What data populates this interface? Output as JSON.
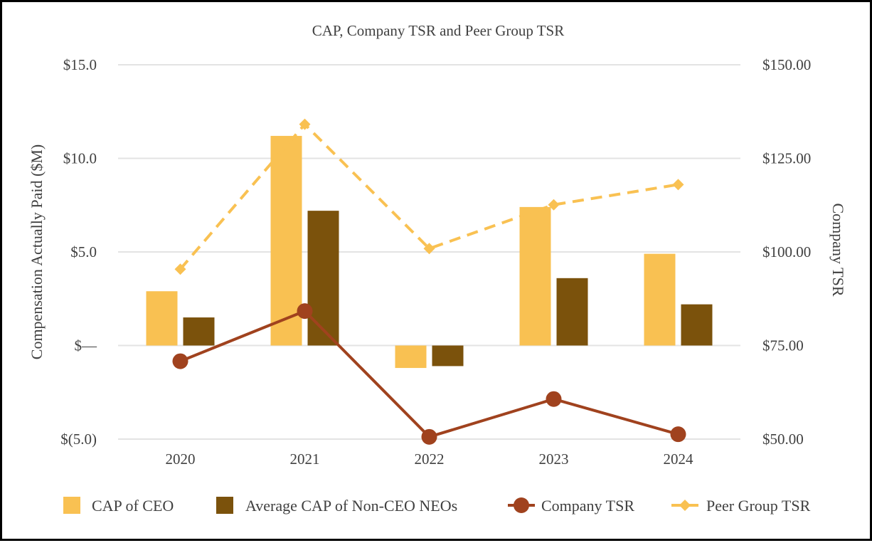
{
  "chart_data": {
    "type": "bar",
    "title": "CAP, Company TSR and Peer Group TSR",
    "categories": [
      "2020",
      "2021",
      "2022",
      "2023",
      "2024"
    ],
    "ylabel": "Compensation Actually Paid ($M)",
    "y2label": "Company TSR",
    "ylim": [
      -5,
      15
    ],
    "y2lim": [
      50,
      150
    ],
    "y_ticks": [
      {
        "value": 15,
        "label": "$15.0"
      },
      {
        "value": 10,
        "label": "$10.0"
      },
      {
        "value": 5,
        "label": "$5.0"
      },
      {
        "value": 0,
        "label": "$—"
      },
      {
        "value": -5,
        "label": "$(5.0)"
      }
    ],
    "y2_ticks": [
      {
        "value": 150,
        "label": "$150.00"
      },
      {
        "value": 125,
        "label": "$125.00"
      },
      {
        "value": 100,
        "label": "$100.00"
      },
      {
        "value": 75,
        "label": "$75.00"
      },
      {
        "value": 50,
        "label": "$50.00"
      }
    ],
    "grid": true,
    "legend_position": "bottom",
    "series": [
      {
        "name": "CAP of CEO",
        "type": "bar",
        "axis": "left",
        "color": "#F9C152",
        "values": [
          2.9,
          11.2,
          -1.2,
          7.4,
          4.9
        ]
      },
      {
        "name": "Average CAP of Non-CEO NEOs",
        "type": "bar",
        "axis": "left",
        "color": "#7B520C",
        "values": [
          1.5,
          7.2,
          -1.1,
          3.6,
          2.2
        ]
      },
      {
        "name": "Company TSR",
        "type": "line",
        "axis": "right",
        "color": "#A0421E",
        "marker": "circle",
        "values": [
          70.8,
          84.2,
          50.6,
          60.7,
          51.3
        ]
      },
      {
        "name": "Peer Group TSR",
        "type": "line",
        "axis": "right",
        "color": "#F9C152",
        "dashed": true,
        "marker": "diamond",
        "values": [
          95.4,
          134.1,
          100.9,
          112.6,
          118.0
        ]
      }
    ]
  }
}
